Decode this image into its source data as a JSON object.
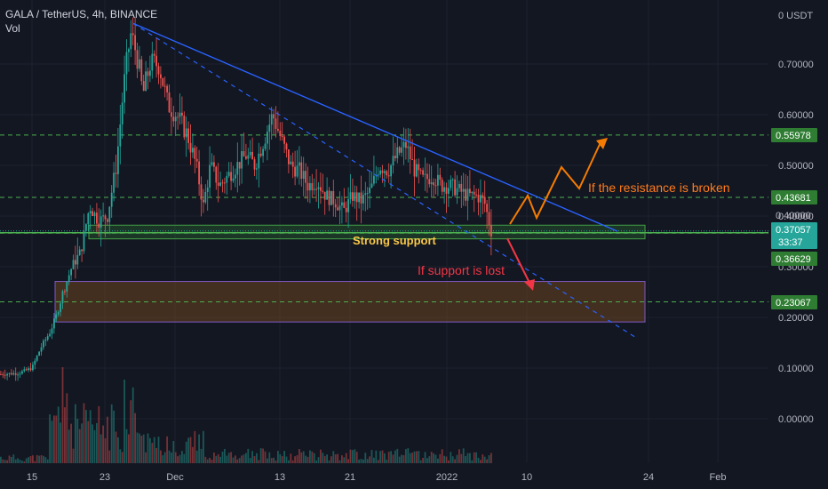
{
  "header": {
    "symbol_line": "GALA / TetherUS, 4h, BINANCE",
    "indicator": "Vol"
  },
  "colors": {
    "background": "#131722",
    "grid": "#1e222d",
    "up": "#26a69a",
    "down": "#ef5350",
    "trendline": "#2962ff",
    "support_zone": "#2e7d32",
    "lower_zone": "#b2661f",
    "arrow_up": "#f57c00",
    "arrow_down": "#f23645",
    "support_text": "#f9c846",
    "resistance_text": "#ff7b1c",
    "lost_text": "#f23645"
  },
  "chart_data": {
    "type": "candlestick",
    "pair": "GALA / TetherUS",
    "timeframe": "4h",
    "exchange": "BINANCE",
    "volume_indicator": "Vol",
    "y_axis": {
      "currency": "USDT",
      "ticks": [
        "0.70000",
        "0.60000",
        "0.50000",
        "0.40000",
        "0.30000",
        "0.20000",
        "0.10000",
        "0.00000"
      ],
      "top_label": "0",
      "top_unit": "USDT"
    },
    "x_axis": {
      "ticks": [
        "15",
        "23",
        "Dec",
        "13",
        "21",
        "2022",
        "10",
        "24",
        "Feb"
      ]
    },
    "price_labels": [
      {
        "value": "0.55978",
        "style": "level"
      },
      {
        "value": "0.43681",
        "style": "level"
      },
      {
        "value": "0.40000",
        "style": "plain"
      },
      {
        "value": "0.37057",
        "style": "current"
      },
      {
        "value": "33:37",
        "style": "countdown"
      },
      {
        "value": "0.36629",
        "style": "level"
      },
      {
        "value": "0.23067",
        "style": "level"
      }
    ],
    "horizontal_levels": [
      0.55978,
      0.43681,
      0.36629,
      0.23067
    ],
    "current_price": 0.37057,
    "price_path": [
      [
        0,
        0.088
      ],
      [
        20,
        0.09
      ],
      [
        35,
        0.1
      ],
      [
        45,
        0.14
      ],
      [
        55,
        0.17
      ],
      [
        62,
        0.2
      ],
      [
        70,
        0.25
      ],
      [
        80,
        0.3
      ],
      [
        90,
        0.33
      ],
      [
        100,
        0.42
      ],
      [
        110,
        0.39
      ],
      [
        120,
        0.4
      ],
      [
        130,
        0.5
      ],
      [
        138,
        0.65
      ],
      [
        146,
        0.76
      ],
      [
        153,
        0.72
      ],
      [
        160,
        0.64
      ],
      [
        168,
        0.7
      ],
      [
        178,
        0.7
      ],
      [
        188,
        0.62
      ],
      [
        198,
        0.6
      ],
      [
        210,
        0.56
      ],
      [
        220,
        0.5
      ],
      [
        228,
        0.42
      ],
      [
        236,
        0.5
      ],
      [
        246,
        0.46
      ],
      [
        256,
        0.48
      ],
      [
        266,
        0.5
      ],
      [
        276,
        0.52
      ],
      [
        286,
        0.5
      ],
      [
        296,
        0.55
      ],
      [
        306,
        0.6
      ],
      [
        316,
        0.55
      ],
      [
        326,
        0.5
      ],
      [
        336,
        0.49
      ],
      [
        346,
        0.46
      ],
      [
        356,
        0.47
      ],
      [
        366,
        0.44
      ],
      [
        376,
        0.43
      ],
      [
        386,
        0.41
      ],
      [
        396,
        0.44
      ],
      [
        406,
        0.43
      ],
      [
        416,
        0.45
      ],
      [
        426,
        0.5
      ],
      [
        436,
        0.49
      ],
      [
        446,
        0.52
      ],
      [
        456,
        0.54
      ],
      [
        466,
        0.49
      ],
      [
        476,
        0.47
      ],
      [
        486,
        0.48
      ],
      [
        496,
        0.46
      ],
      [
        506,
        0.46
      ],
      [
        516,
        0.45
      ],
      [
        526,
        0.44
      ],
      [
        536,
        0.44
      ],
      [
        544,
        0.43
      ],
      [
        552,
        0.37
      ]
    ],
    "zones": [
      {
        "name": "Strong support",
        "from_x": 100,
        "to_x": 726,
        "top": 0.382,
        "bottom": 0.355
      },
      {
        "name": "lower zone",
        "from_x": 62,
        "to_x": 726,
        "top": 0.271,
        "bottom": 0.191
      }
    ],
    "annotations": {
      "support": "Strong support",
      "resistance": "If the resistance is broken",
      "support_lost": "If support is lost"
    }
  }
}
